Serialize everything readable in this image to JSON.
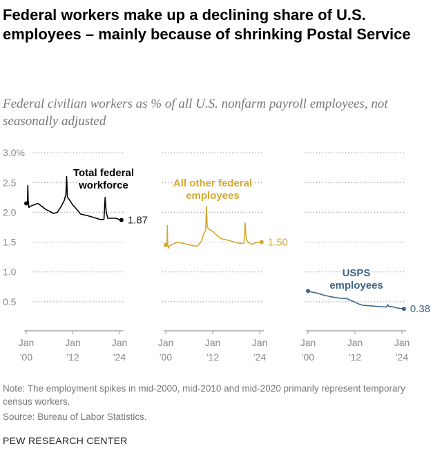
{
  "title": "Federal workers make up a declining share of U.S. employees – mainly because of shrinking Postal Service",
  "subtitle": "Federal civilian workers as % of all U.S. nonfarm payroll employees, not seasonally adjusted",
  "note": "Note: The employment spikes in mid-2000, mid-2010 and mid-2020 primarily represent temporary census workers.",
  "source": "Source: Bureau of Labor Statistics.",
  "brand": "PEW RESEARCH CENTER",
  "chart_data": {
    "type": "line",
    "ylim": [
      0,
      3.0
    ],
    "y_ticks": [
      "3.0%",
      "2.5",
      "2.0",
      "1.5",
      "1.0",
      "0.5"
    ],
    "y_tick_values": [
      3.0,
      2.5,
      2.0,
      1.5,
      1.0,
      0.5
    ],
    "x_ticks": [
      {
        "month": "Jan",
        "year": "'00",
        "value": 2000
      },
      {
        "month": "Jan",
        "year": "'12",
        "value": 2012
      },
      {
        "month": "Jan",
        "year": "'24",
        "value": 2024
      }
    ],
    "xlim": [
      2000,
      2024.5
    ],
    "grid": true,
    "panels": [
      {
        "name": "Total federal workforce",
        "color": "#000000",
        "end_label": "1.87",
        "x": [
          2000,
          2000.3,
          2000.4,
          2000.5,
          2000.7,
          2001,
          2003,
          2005,
          2007,
          2008,
          2009,
          2009.8,
          2010.2,
          2010.4,
          2010.6,
          2011,
          2012,
          2013,
          2014,
          2016,
          2018,
          2019,
          2020,
          2020.3,
          2020.45,
          2020.6,
          2021,
          2022,
          2023,
          2024.5
        ],
        "y": [
          2.15,
          2.14,
          2.45,
          2.2,
          2.08,
          2.1,
          2.15,
          2.05,
          1.98,
          2.0,
          2.1,
          2.2,
          2.3,
          2.6,
          2.25,
          2.22,
          2.12,
          2.05,
          1.97,
          1.94,
          1.9,
          1.88,
          1.88,
          2.25,
          2.12,
          2.0,
          1.9,
          1.9,
          1.9,
          1.87
        ]
      },
      {
        "name": "All other federal employees",
        "color": "#d4a92f",
        "end_label": "1.50",
        "x": [
          2000,
          2000.3,
          2000.4,
          2000.5,
          2000.7,
          2001,
          2003,
          2005,
          2007,
          2008,
          2009,
          2009.8,
          2010.2,
          2010.4,
          2010.6,
          2011,
          2012,
          2013,
          2014,
          2016,
          2018,
          2019,
          2020,
          2020.3,
          2020.45,
          2020.6,
          2021,
          2022,
          2023,
          2024.5
        ],
        "y": [
          1.45,
          1.44,
          1.78,
          1.45,
          1.4,
          1.44,
          1.5,
          1.47,
          1.44,
          1.43,
          1.5,
          1.65,
          1.7,
          2.1,
          1.75,
          1.72,
          1.68,
          1.62,
          1.56,
          1.53,
          1.49,
          1.48,
          1.48,
          1.82,
          1.65,
          1.55,
          1.5,
          1.46,
          1.49,
          1.5
        ]
      },
      {
        "name": "USPS employees",
        "color": "#3d6585",
        "end_label": "0.38",
        "x": [
          2000,
          2001,
          2002,
          2004,
          2006,
          2008,
          2010,
          2011,
          2012,
          2013,
          2014,
          2016,
          2018,
          2020,
          2020.4,
          2020.6,
          2021,
          2022,
          2023,
          2024.5
        ],
        "y": [
          0.68,
          0.66,
          0.65,
          0.61,
          0.58,
          0.56,
          0.55,
          0.52,
          0.49,
          0.46,
          0.44,
          0.43,
          0.42,
          0.41,
          0.45,
          0.42,
          0.42,
          0.41,
          0.39,
          0.38
        ]
      }
    ]
  }
}
